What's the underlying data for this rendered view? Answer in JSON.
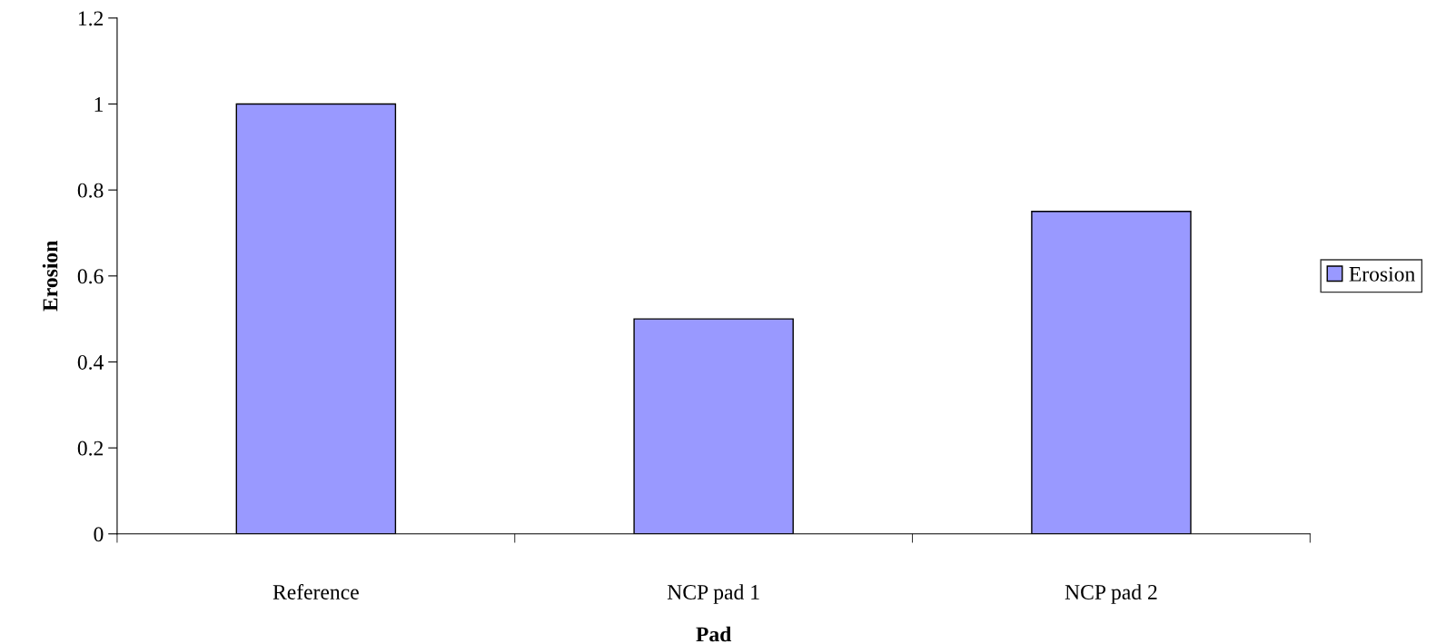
{
  "chart_data": {
    "type": "bar",
    "xlabel": "Pad",
    "ylabel": "Erosion",
    "categories": [
      "Reference",
      "NCP pad 1",
      "NCP pad 2"
    ],
    "series": [
      {
        "name": "Erosion",
        "color": "#9999ff",
        "values": [
          1,
          0.5,
          0.75
        ]
      }
    ],
    "ylim": [
      0,
      1.2
    ],
    "yticks": [
      0,
      0.2,
      0.4,
      0.6,
      0.8,
      1,
      1.2
    ],
    "grid": false,
    "legend": "right"
  }
}
